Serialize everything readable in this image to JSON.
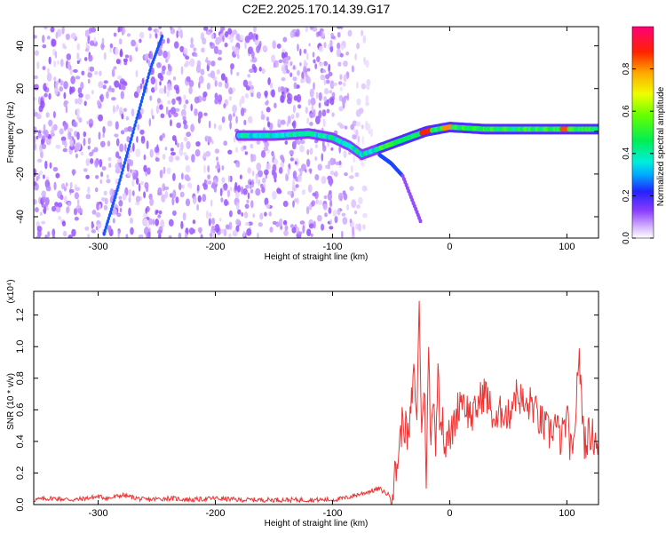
{
  "title": "C2E2.2025.170.14.39.G17",
  "colors": {
    "snr_line": "#ee3333",
    "axis": "#000000",
    "background": "#ffffff"
  },
  "chart_data": [
    {
      "type": "heatmap",
      "xlabel": "Height of straight line (km)",
      "ylabel": "Frequency (Hz)",
      "xlim": [
        -355,
        127
      ],
      "ylim": [
        -50,
        49
      ],
      "x_ticks": [
        -300,
        -200,
        -100,
        0,
        100
      ],
      "y_ticks": [
        -40,
        -20,
        0,
        20,
        40
      ],
      "x_tick_labels": [
        "-300",
        "-200",
        "-100",
        "0",
        "100"
      ],
      "y_tick_labels": [
        "-40",
        "-20",
        "0",
        "20",
        "40"
      ],
      "colorbar": {
        "label": "Normalized spectral amplitude",
        "range": [
          0,
          1
        ],
        "ticks": [
          0.0,
          0.2,
          0.4,
          0.6,
          0.8
        ],
        "tick_labels": [
          "0.0",
          "0.2",
          "0.4",
          "0.6",
          "0.8"
        ],
        "colormap": "rainbow (white → purple → blue → cyan → green → yellow → red → magenta)"
      },
      "features": [
        {
          "name": "noise_floor",
          "x_range": [
            -355,
            -60
          ],
          "y_range": [
            -50,
            49
          ],
          "amplitude": 0.1
        },
        {
          "name": "main_track",
          "points": [
            [
              -180,
              -2
            ],
            [
              -150,
              -2
            ],
            [
              -120,
              -1
            ],
            [
              -100,
              -3
            ],
            [
              -85,
              -7
            ],
            [
              -75,
              -11
            ],
            [
              -65,
              -9
            ],
            [
              -55,
              -7
            ],
            [
              -45,
              -5
            ],
            [
              -30,
              -2
            ],
            [
              -20,
              0
            ],
            [
              -10,
              1
            ],
            [
              0,
              2
            ],
            [
              30,
              1
            ],
            [
              60,
              1
            ],
            [
              90,
              1
            ],
            [
              127,
              1
            ]
          ],
          "amplitude": [
            0.3,
            0.9
          ]
        },
        {
          "name": "branch",
          "points": [
            [
              -60,
              -11
            ],
            [
              -50,
              -15
            ],
            [
              -40,
              -21
            ],
            [
              -30,
              -35
            ],
            [
              -25,
              -42
            ]
          ],
          "amplitude": 0.2
        },
        {
          "name": "diagonal_streak",
          "points": [
            [
              -295,
              -48
            ],
            [
              -285,
              -30
            ],
            [
              -275,
              -10
            ],
            [
              -265,
              10
            ],
            [
              -255,
              30
            ],
            [
              -245,
              45
            ]
          ],
          "amplitude": 0.25
        }
      ]
    },
    {
      "type": "line",
      "xlabel": "Height of straight line (km)",
      "ylabel": "SNR (10 * v/v)",
      "y_multiplier": "(x10⁴)",
      "xlim": [
        -355,
        127
      ],
      "ylim": [
        0,
        1.35
      ],
      "x_ticks": [
        -300,
        -200,
        -100,
        0,
        100
      ],
      "y_ticks": [
        0.0,
        0.2,
        0.4,
        0.6,
        0.8,
        1.0,
        1.2
      ],
      "x_tick_labels": [
        "-300",
        "-200",
        "-100",
        "0",
        "100"
      ],
      "y_tick_labels": [
        "0.0",
        "0.2",
        "0.4",
        "0.6",
        "0.8",
        "1.0",
        "1.2"
      ],
      "series": [
        {
          "color": "#ee3333",
          "x": [
            -355,
            -340,
            -320,
            -300,
            -290,
            -280,
            -260,
            -240,
            -220,
            -200,
            -180,
            -160,
            -140,
            -120,
            -100,
            -90,
            -80,
            -70,
            -60,
            -50,
            -45,
            -40,
            -35,
            -32,
            -30,
            -28,
            -26,
            -24,
            -22,
            -20,
            -18,
            -16,
            -14,
            -12,
            -10,
            -8,
            -6,
            -4,
            -2,
            0,
            5,
            10,
            15,
            20,
            25,
            30,
            35,
            40,
            45,
            50,
            55,
            60,
            65,
            70,
            75,
            80,
            85,
            90,
            95,
            100,
            105,
            110,
            115,
            120,
            127
          ],
          "values": [
            0.03,
            0.04,
            0.03,
            0.05,
            0.04,
            0.06,
            0.03,
            0.04,
            0.03,
            0.04,
            0.03,
            0.03,
            0.03,
            0.03,
            0.03,
            0.04,
            0.06,
            0.08,
            0.1,
            0.05,
            0.25,
            0.55,
            0.4,
            0.7,
            0.85,
            0.5,
            1.35,
            0.4,
            0.8,
            0.2,
            0.95,
            0.35,
            0.75,
            0.4,
            0.85,
            0.45,
            0.6,
            0.35,
            0.5,
            0.4,
            0.55,
            0.7,
            0.6,
            0.55,
            0.65,
            0.72,
            0.6,
            0.5,
            0.62,
            0.55,
            0.7,
            0.68,
            0.6,
            0.65,
            0.55,
            0.5,
            0.45,
            0.52,
            0.4,
            0.55,
            0.25,
            0.95,
            0.4,
            0.45,
            0.4
          ]
        }
      ]
    }
  ]
}
